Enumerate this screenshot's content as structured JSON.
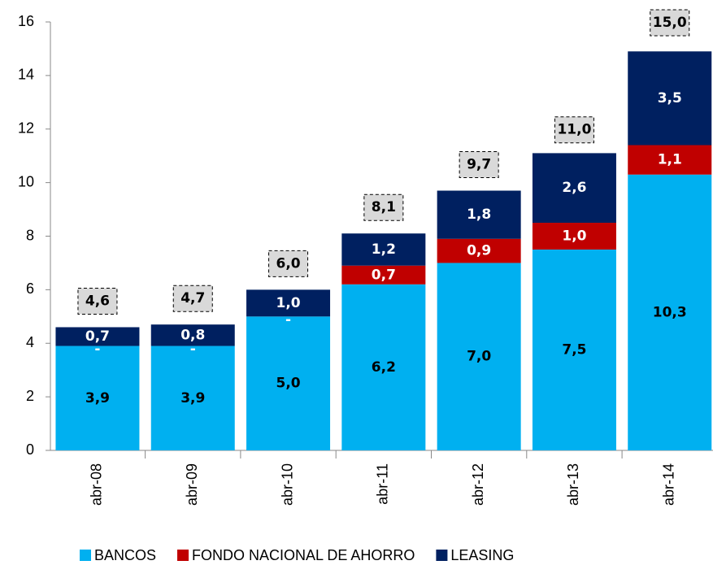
{
  "chart_data": {
    "type": "stacked_bar",
    "categories": [
      "abr-08",
      "abr-09",
      "abr-10",
      "abr-11",
      "abr-12",
      "abr-13",
      "abr-14"
    ],
    "series": [
      {
        "name": "BANCOS",
        "color": "#00b0f0",
        "label_color": "#000000",
        "values": [
          3.9,
          3.9,
          5.0,
          6.2,
          7.0,
          7.5,
          10.3
        ],
        "value_labels": [
          "3,9",
          "3,9",
          "5,0",
          "6,2",
          "7,0",
          "7,5",
          "10,3"
        ]
      },
      {
        "name": "FONDO NACIONAL DE AHORRO",
        "color": "#c00000",
        "label_color": "#ffffff",
        "values": [
          0,
          0,
          0,
          0.7,
          0.9,
          1.0,
          1.1
        ],
        "value_labels": [
          "-",
          "-",
          "-",
          "0,7",
          "0,9",
          "1,0",
          "1,1"
        ]
      },
      {
        "name": "LEASING",
        "color": "#002060",
        "label_color": "#ffffff",
        "values": [
          0.7,
          0.8,
          1.0,
          1.2,
          1.8,
          2.6,
          3.5
        ],
        "value_labels": [
          "0,7",
          "0,8",
          "1,0",
          "1,2",
          "1,8",
          "2,6",
          "3,5"
        ]
      }
    ],
    "totals": [
      4.6,
      4.7,
      6.0,
      8.1,
      9.7,
      11.0,
      15.0
    ],
    "total_labels": [
      "4,6",
      "4,7",
      "6,0",
      "8,1",
      "9,7",
      "11,0",
      "15,0"
    ],
    "ylim": [
      0,
      16
    ],
    "yticks": [
      0,
      2,
      4,
      6,
      8,
      10,
      12,
      14,
      16
    ],
    "grid": false,
    "legend": "bottom"
  }
}
